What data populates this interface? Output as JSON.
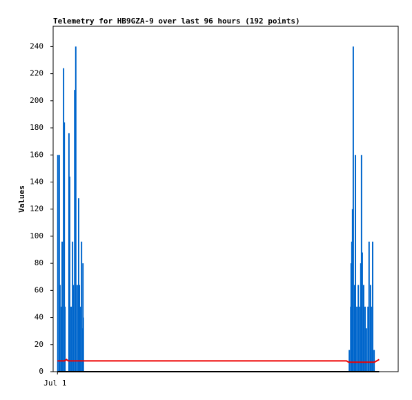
{
  "chart_data": {
    "type": "line",
    "title": "Telemetry for HB9GZA-9 over last 96 hours (192 points)",
    "y_label": "Values",
    "xlim": [
      0,
      96
    ],
    "xticks": [
      {
        "value": 1.2,
        "label": "Jul 1"
      }
    ],
    "ylim": [
      0,
      255
    ],
    "yticks": [
      0,
      20,
      40,
      60,
      80,
      100,
      120,
      140,
      160,
      180,
      200,
      220,
      240
    ],
    "series": [
      {
        "style": "impulse",
        "color": "#0066cc",
        "x": [
          1.3,
          1.7,
          1.9,
          2.3,
          2.5,
          2.9,
          3.1,
          3.3,
          4.4,
          4.6,
          5.0,
          5.4,
          5.6,
          6.0,
          6.3,
          6.7,
          7.1,
          7.3,
          7.5,
          7.9,
          8.1,
          8.3,
          8.4,
          82.4,
          82.8,
          82.9,
          83.1,
          83.3,
          83.5,
          83.9,
          84.1,
          84.5,
          84.9,
          85.2,
          85.6,
          85.8,
          86.0,
          86.4,
          86.8,
          87.2,
          87.6,
          87.9,
          88.3,
          88.5,
          88.9,
          89.3
        ],
        "values": [
          160,
          160,
          64,
          48,
          96,
          224,
          184,
          48,
          176,
          144,
          48,
          96,
          64,
          208,
          240,
          64,
          128,
          64,
          48,
          96,
          32,
          80,
          40,
          16,
          48,
          80,
          96,
          120,
          240,
          64,
          160,
          48,
          64,
          48,
          80,
          160,
          88,
          64,
          48,
          32,
          48,
          96,
          64,
          48,
          96,
          16
        ]
      },
      {
        "style": "line",
        "color": "#ee0000",
        "x": [
          1.2,
          3.2,
          3.7,
          4.2,
          8.6,
          81.6,
          82.2,
          89.4,
          90.7
        ],
        "values": [
          8,
          8,
          9,
          8,
          8,
          8,
          7,
          7,
          9
        ]
      },
      {
        "style": "line",
        "color": "#000000",
        "x": [
          1.2,
          90.7
        ],
        "values": [
          0,
          0
        ]
      }
    ]
  }
}
